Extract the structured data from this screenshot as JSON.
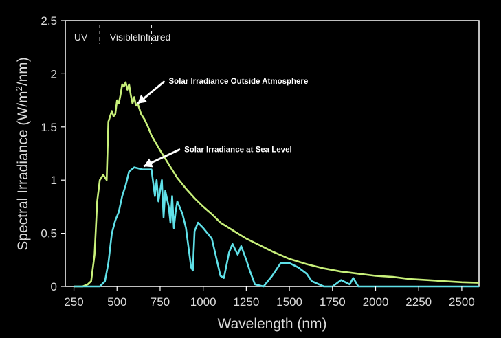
{
  "chart_data": {
    "type": "line",
    "title": "",
    "xlabel": "Wavelength (nm)",
    "ylabel_parts": [
      "Spectral Irradiance (W/m",
      "2",
      "/nm)"
    ],
    "xlim": [
      200,
      2600
    ],
    "ylim": [
      0,
      2.5
    ],
    "x_ticks": [
      250,
      500,
      750,
      1000,
      1250,
      1500,
      1750,
      2000,
      2250,
      2500
    ],
    "x_tick_labels": [
      "250",
      "500",
      "750",
      "1000",
      "1250",
      "1500",
      "1750",
      "2000",
      "2250",
      "2500"
    ],
    "y_ticks": [
      0,
      0.5,
      1,
      1.5,
      2,
      2.5
    ],
    "y_tick_labels": [
      "0",
      "0.5",
      "1",
      "1.5",
      "2",
      "2.5"
    ],
    "grid": false,
    "regions": [
      {
        "label": "UV",
        "x": 290
      },
      {
        "label": "Visible",
        "x": 540
      },
      {
        "label": "Infrared",
        "x": 715
      }
    ],
    "region_dividers": [
      400,
      700
    ],
    "annotations": [
      {
        "text": "Solar Irradiance Outside Atmosphere",
        "x": 800,
        "y": 1.93,
        "arrow_to": [
          620,
          1.72
        ]
      },
      {
        "text": "Solar Irradiance at Sea Level",
        "x": 890,
        "y": 1.29,
        "arrow_to": [
          655,
          1.13
        ]
      }
    ],
    "series": [
      {
        "name": "Solar Irradiance Outside Atmosphere",
        "color": "#c8f07a",
        "x": [
          250,
          300,
          330,
          350,
          370,
          385,
          400,
          420,
          440,
          450,
          470,
          480,
          490,
          500,
          510,
          520,
          530,
          540,
          550,
          560,
          570,
          580,
          590,
          600,
          610,
          620,
          640,
          660,
          680,
          700,
          750,
          800,
          850,
          900,
          950,
          1000,
          1050,
          1100,
          1150,
          1200,
          1250,
          1300,
          1400,
          1500,
          1600,
          1700,
          1800,
          1900,
          2000,
          2100,
          2200,
          2300,
          2400,
          2500,
          2600
        ],
        "y": [
          0,
          0,
          0.02,
          0.05,
          0.3,
          0.8,
          1.0,
          1.05,
          1.0,
          1.55,
          1.65,
          1.6,
          1.62,
          1.75,
          1.72,
          1.8,
          1.9,
          1.88,
          1.92,
          1.85,
          1.9,
          1.8,
          1.72,
          1.78,
          1.7,
          1.72,
          1.62,
          1.57,
          1.5,
          1.42,
          1.28,
          1.15,
          1.02,
          0.92,
          0.83,
          0.75,
          0.68,
          0.6,
          0.55,
          0.5,
          0.45,
          0.41,
          0.33,
          0.26,
          0.21,
          0.17,
          0.14,
          0.12,
          0.1,
          0.09,
          0.07,
          0.06,
          0.05,
          0.04,
          0.035
        ]
      },
      {
        "name": "Solar Irradiance at Sea Level",
        "color": "#5fe0e8",
        "x": [
          250,
          400,
          430,
          450,
          470,
          490,
          510,
          530,
          550,
          570,
          600,
          650,
          700,
          720,
          730,
          740,
          760,
          770,
          780,
          800,
          810,
          820,
          830,
          840,
          850,
          870,
          880,
          900,
          930,
          940,
          950,
          970,
          1000,
          1050,
          1100,
          1120,
          1150,
          1170,
          1200,
          1220,
          1250,
          1270,
          1300,
          1350,
          1400,
          1450,
          1500,
          1550,
          1600,
          1630,
          1700,
          1750,
          1800,
          1850,
          1870,
          1900,
          2000,
          2200,
          2400,
          2600
        ],
        "y": [
          0,
          0,
          0.05,
          0.22,
          0.5,
          0.62,
          0.7,
          0.85,
          0.95,
          1.08,
          1.12,
          1.1,
          1.1,
          0.85,
          1.0,
          0.8,
          1.0,
          0.65,
          0.9,
          0.75,
          0.6,
          0.85,
          0.55,
          0.7,
          0.8,
          0.72,
          0.68,
          0.55,
          0.18,
          0.15,
          0.52,
          0.6,
          0.55,
          0.45,
          0.1,
          0.08,
          0.32,
          0.4,
          0.3,
          0.38,
          0.25,
          0.15,
          0.02,
          0.0,
          0.1,
          0.22,
          0.22,
          0.18,
          0.12,
          0.05,
          0.0,
          0.0,
          0.06,
          0.02,
          0.08,
          0.0,
          0.0,
          0.0,
          0.0,
          0.0
        ]
      }
    ]
  }
}
